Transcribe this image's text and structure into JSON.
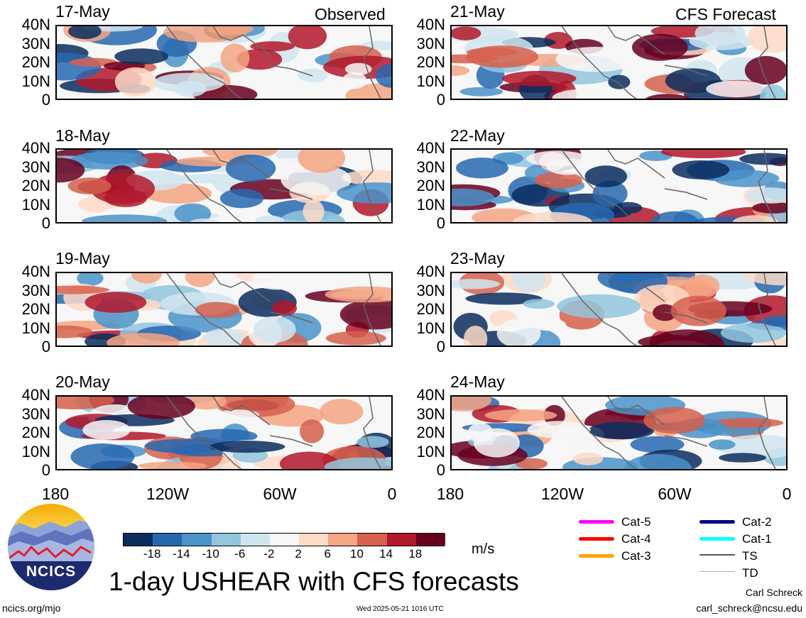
{
  "panel_titles": {
    "left": "Observed",
    "right": "CFS Forecast"
  },
  "dates": {
    "observed": [
      "17-May",
      "18-May",
      "19-May",
      "20-May"
    ],
    "forecast": [
      "21-May",
      "22-May",
      "23-May",
      "24-May"
    ]
  },
  "y_ticks": [
    "40N",
    "30N",
    "20N",
    "10N",
    "0"
  ],
  "x_ticks": [
    "180",
    "120W",
    "60W",
    "0"
  ],
  "colorbar": {
    "labels": [
      "-18",
      "-14",
      "-10",
      "-6",
      "-2",
      "2",
      "6",
      "10",
      "14",
      "18"
    ],
    "colors": [
      "#0b2d5e",
      "#2767b0",
      "#4a93c9",
      "#92c5de",
      "#d1e5f0",
      "#f7f7f7",
      "#fddbc7",
      "#f4a582",
      "#d6604d",
      "#b2182b",
      "#67001f"
    ],
    "units": "m/s"
  },
  "legend": {
    "items": [
      {
        "label": "Cat-5",
        "color": "#ff00ff"
      },
      {
        "label": "Cat-4",
        "color": "#ff0000"
      },
      {
        "label": "Cat-3",
        "color": "#ffa500"
      },
      {
        "label": "Cat-2",
        "color": "#00008b"
      },
      {
        "label": "Cat-1",
        "color": "#00ffff"
      },
      {
        "label": "TS",
        "color": "#555555"
      },
      {
        "label": "TD",
        "color": "#aaaaaa"
      }
    ]
  },
  "logo": {
    "text": "NCICS"
  },
  "title": "1-day USHEAR with CFS forecasts",
  "footer": {
    "website": "ncics.org/mjo",
    "timestamp": "Wed 2025-05-21 1016 UTC",
    "author": "Carl Schreck",
    "email": "carl_schreck@ncsu.edu"
  }
}
